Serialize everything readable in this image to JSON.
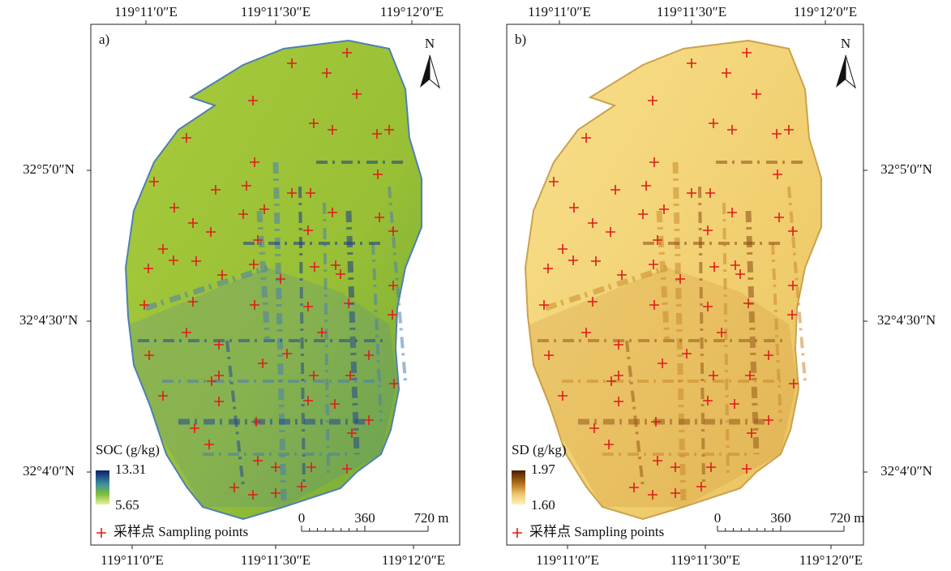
{
  "panels": [
    {
      "label": "a)",
      "top_ticks": [
        "119°11′0″E",
        "119°11′30″E",
        "119°12′0″E"
      ],
      "bottom_ticks": [
        "119°11′0″E",
        "119°11′30″E",
        "119°12′0″E"
      ],
      "lat_ticks": [
        "32°5′0″N",
        "32°4′30″N",
        "32°4′0″N"
      ],
      "north": "N",
      "legend": {
        "title": "SOC (g/kg)",
        "max": "13.31",
        "min": "5.65",
        "points": "采样点 Sampling points"
      },
      "scale": [
        "0",
        "360",
        "720 m"
      ]
    },
    {
      "label": "b)",
      "top_ticks": [
        "119°11′0″E",
        "119°11′30″E",
        "119°12′0″E"
      ],
      "bottom_ticks": [
        "119°11′0″E",
        "119°11′30″E",
        "119°12′0″E"
      ],
      "lat_ticks": [
        "32°5′0″N",
        "32°4′30″N",
        "32°4′0″N"
      ],
      "north": "N",
      "legend": {
        "title": "SD (g/kg)",
        "max": "1.97",
        "min": "1.60",
        "points": "采样点 Sampling points"
      },
      "scale": [
        "0",
        "360",
        "720 m"
      ]
    }
  ]
}
